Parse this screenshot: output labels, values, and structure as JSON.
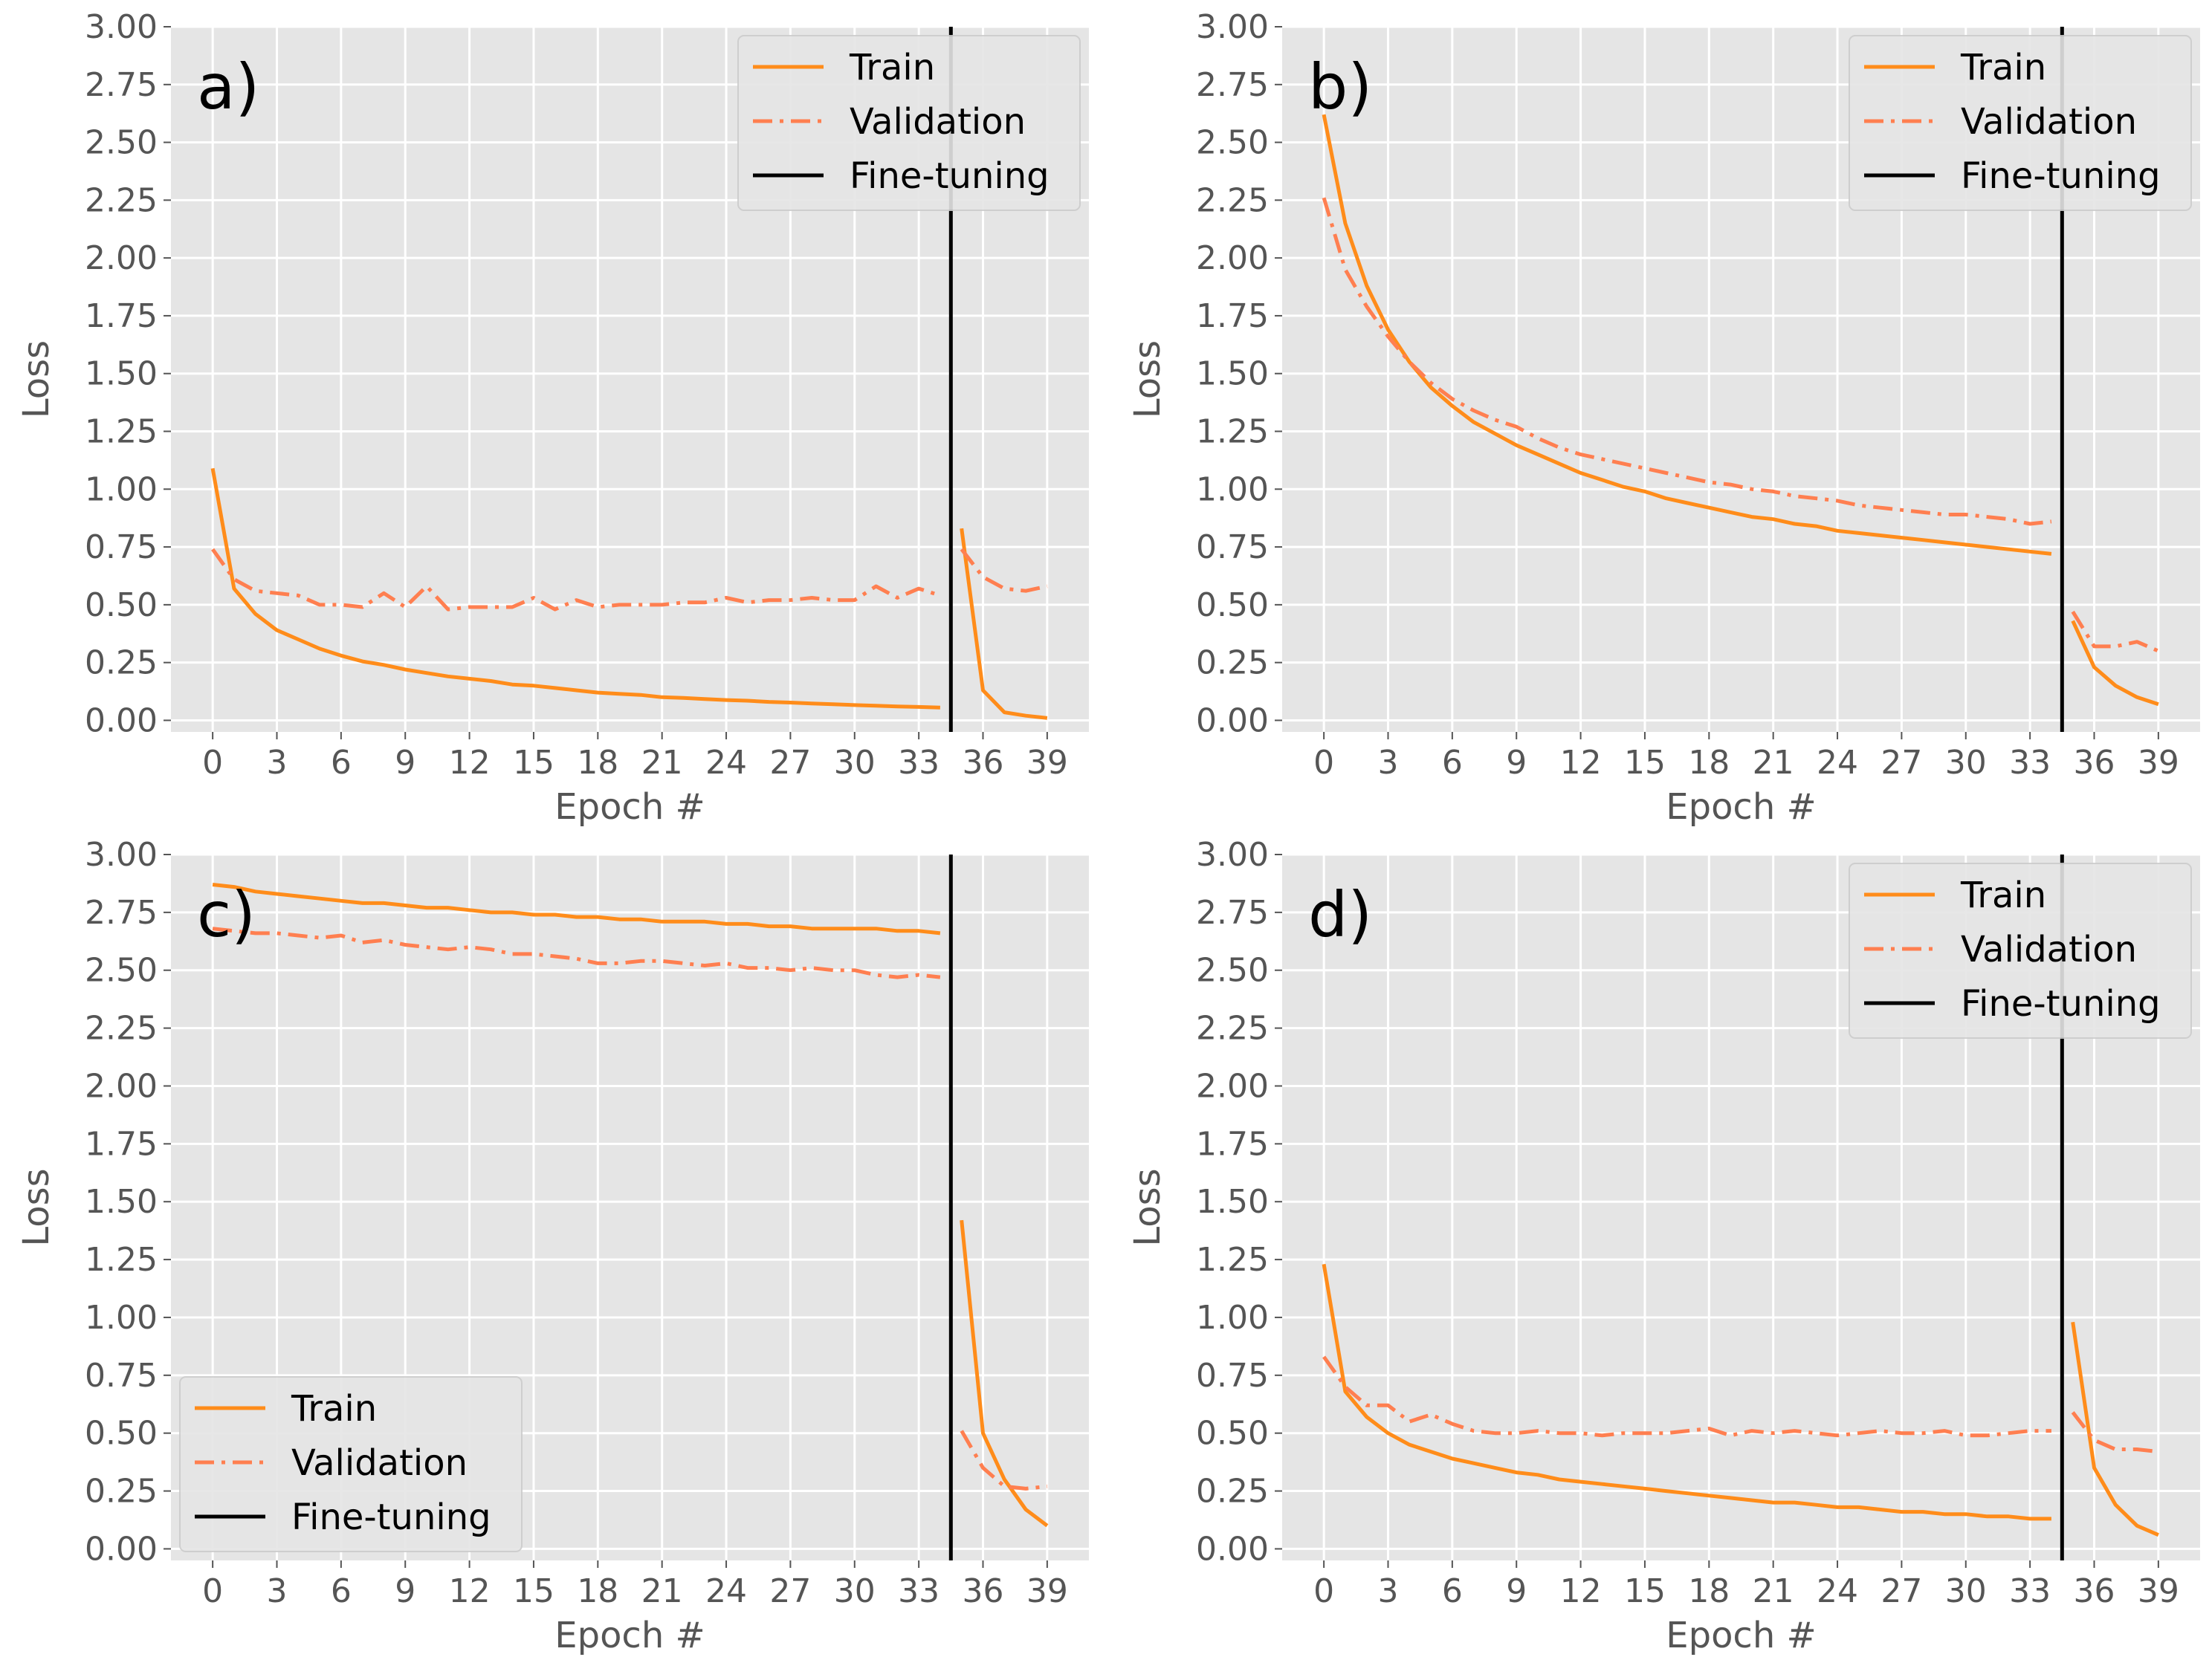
{
  "figure": {
    "style": {
      "panel_background": "#E5E5E5",
      "grid_color": "#FFFFFF",
      "train_color": "#FF8C1A",
      "validation_color": "#FF7F50",
      "finetune_color": "#000000"
    }
  },
  "chart_data": [
    {
      "type": "line",
      "panel_label": "a)",
      "xlabel": "Epoch #",
      "ylabel": "Loss",
      "xlim": [
        -1.95,
        40.95
      ],
      "ylim": [
        -0.05,
        3.0
      ],
      "xticks": [
        0,
        3,
        6,
        9,
        12,
        15,
        18,
        21,
        24,
        27,
        30,
        33,
        36,
        39
      ],
      "yticks": [
        "0.00",
        "0.25",
        "0.50",
        "0.75",
        "1.00",
        "1.25",
        "1.50",
        "1.75",
        "2.00",
        "2.25",
        "2.50",
        "2.75",
        "3.00"
      ],
      "grid": true,
      "legend": {
        "position": "top-right",
        "entries": [
          "Train",
          "Validation",
          "Fine-tuning"
        ]
      },
      "finetune_x": 34.5,
      "series": [
        {
          "name": "Train",
          "style": "solid",
          "segments": [
            {
              "x": [
                0,
                1,
                2,
                3,
                4,
                5,
                6,
                7,
                8,
                9,
                10,
                11,
                12,
                13,
                14,
                15,
                16,
                17,
                18,
                19,
                20,
                21,
                22,
                23,
                24,
                25,
                26,
                27,
                28,
                29,
                30,
                31,
                32,
                33,
                34
              ],
              "y": [
                1.09,
                0.57,
                0.46,
                0.39,
                0.35,
                0.31,
                0.28,
                0.255,
                0.24,
                0.22,
                0.205,
                0.19,
                0.18,
                0.17,
                0.155,
                0.15,
                0.14,
                0.13,
                0.12,
                0.115,
                0.11,
                0.1,
                0.097,
                0.092,
                0.088,
                0.085,
                0.08,
                0.077,
                0.073,
                0.07,
                0.066,
                0.063,
                0.06,
                0.058,
                0.055
              ]
            },
            {
              "x": [
                35,
                36,
                37,
                38,
                39
              ],
              "y": [
                0.83,
                0.13,
                0.035,
                0.02,
                0.01
              ]
            }
          ]
        },
        {
          "name": "Validation",
          "style": "dashdot",
          "segments": [
            {
              "x": [
                0,
                1,
                2,
                3,
                4,
                5,
                6,
                7,
                8,
                9,
                10,
                11,
                12,
                13,
                14,
                15,
                16,
                17,
                18,
                19,
                20,
                21,
                22,
                23,
                24,
                25,
                26,
                27,
                28,
                29,
                30,
                31,
                32,
                33,
                34
              ],
              "y": [
                0.74,
                0.61,
                0.56,
                0.55,
                0.54,
                0.5,
                0.5,
                0.49,
                0.55,
                0.49,
                0.58,
                0.48,
                0.49,
                0.49,
                0.49,
                0.53,
                0.48,
                0.52,
                0.49,
                0.5,
                0.5,
                0.5,
                0.51,
                0.51,
                0.53,
                0.51,
                0.52,
                0.52,
                0.53,
                0.52,
                0.52,
                0.58,
                0.53,
                0.57,
                0.54
              ]
            },
            {
              "x": [
                35,
                36,
                37,
                38,
                39
              ],
              "y": [
                0.74,
                0.62,
                0.57,
                0.56,
                0.58
              ]
            }
          ]
        }
      ]
    },
    {
      "type": "line",
      "panel_label": "b)",
      "xlabel": "Epoch #",
      "ylabel": "Loss",
      "xlim": [
        -1.95,
        40.95
      ],
      "ylim": [
        -0.05,
        3.0
      ],
      "xticks": [
        0,
        3,
        6,
        9,
        12,
        15,
        18,
        21,
        24,
        27,
        30,
        33,
        36,
        39
      ],
      "yticks": [
        "0.00",
        "0.25",
        "0.50",
        "0.75",
        "1.00",
        "1.25",
        "1.50",
        "1.75",
        "2.00",
        "2.25",
        "2.50",
        "2.75",
        "3.00"
      ],
      "grid": true,
      "legend": {
        "position": "top-right",
        "entries": [
          "Train",
          "Validation",
          "Fine-tuning"
        ]
      },
      "finetune_x": 34.5,
      "series": [
        {
          "name": "Train",
          "style": "solid",
          "segments": [
            {
              "x": [
                0,
                1,
                2,
                3,
                4,
                5,
                6,
                7,
                8,
                9,
                10,
                11,
                12,
                13,
                14,
                15,
                16,
                17,
                18,
                19,
                20,
                21,
                22,
                23,
                24,
                25,
                26,
                27,
                28,
                29,
                30,
                31,
                32,
                33,
                34
              ],
              "y": [
                2.62,
                2.15,
                1.88,
                1.69,
                1.55,
                1.44,
                1.36,
                1.29,
                1.24,
                1.19,
                1.15,
                1.11,
                1.07,
                1.04,
                1.01,
                0.99,
                0.96,
                0.94,
                0.92,
                0.9,
                0.88,
                0.87,
                0.85,
                0.84,
                0.82,
                0.81,
                0.8,
                0.79,
                0.78,
                0.77,
                0.76,
                0.75,
                0.74,
                0.73,
                0.72
              ]
            },
            {
              "x": [
                35,
                36,
                37,
                38,
                39
              ],
              "y": [
                0.43,
                0.23,
                0.15,
                0.1,
                0.07
              ]
            }
          ]
        },
        {
          "name": "Validation",
          "style": "dashdot",
          "segments": [
            {
              "x": [
                0,
                1,
                2,
                3,
                4,
                5,
                6,
                7,
                8,
                9,
                10,
                11,
                12,
                13,
                14,
                15,
                16,
                17,
                18,
                19,
                20,
                21,
                22,
                23,
                24,
                25,
                26,
                27,
                28,
                29,
                30,
                31,
                32,
                33,
                34
              ],
              "y": [
                2.26,
                1.95,
                1.79,
                1.66,
                1.55,
                1.46,
                1.39,
                1.34,
                1.3,
                1.27,
                1.22,
                1.18,
                1.15,
                1.13,
                1.11,
                1.09,
                1.07,
                1.05,
                1.03,
                1.02,
                1.0,
                0.99,
                0.97,
                0.96,
                0.95,
                0.93,
                0.92,
                0.91,
                0.9,
                0.89,
                0.89,
                0.88,
                0.87,
                0.85,
                0.86
              ]
            },
            {
              "x": [
                35,
                36,
                37,
                38,
                39
              ],
              "y": [
                0.47,
                0.32,
                0.32,
                0.34,
                0.3
              ]
            }
          ]
        }
      ]
    },
    {
      "type": "line",
      "panel_label": "c)",
      "xlabel": "Epoch #",
      "ylabel": "Loss",
      "xlim": [
        -1.95,
        40.95
      ],
      "ylim": [
        -0.05,
        3.0
      ],
      "xticks": [
        0,
        3,
        6,
        9,
        12,
        15,
        18,
        21,
        24,
        27,
        30,
        33,
        36,
        39
      ],
      "yticks": [
        "0.00",
        "0.25",
        "0.50",
        "0.75",
        "1.00",
        "1.25",
        "1.50",
        "1.75",
        "2.00",
        "2.25",
        "2.50",
        "2.75",
        "3.00"
      ],
      "grid": true,
      "legend": {
        "position": "bottom-left",
        "entries": [
          "Train",
          "Validation",
          "Fine-tuning"
        ]
      },
      "finetune_x": 34.5,
      "series": [
        {
          "name": "Train",
          "style": "solid",
          "segments": [
            {
              "x": [
                0,
                1,
                2,
                3,
                4,
                5,
                6,
                7,
                8,
                9,
                10,
                11,
                12,
                13,
                14,
                15,
                16,
                17,
                18,
                19,
                20,
                21,
                22,
                23,
                24,
                25,
                26,
                27,
                28,
                29,
                30,
                31,
                32,
                33,
                34
              ],
              "y": [
                2.87,
                2.86,
                2.84,
                2.83,
                2.82,
                2.81,
                2.8,
                2.79,
                2.79,
                2.78,
                2.77,
                2.77,
                2.76,
                2.75,
                2.75,
                2.74,
                2.74,
                2.73,
                2.73,
                2.72,
                2.72,
                2.71,
                2.71,
                2.71,
                2.7,
                2.7,
                2.69,
                2.69,
                2.68,
                2.68,
                2.68,
                2.68,
                2.67,
                2.67,
                2.66
              ]
            },
            {
              "x": [
                35,
                36,
                37,
                38,
                39
              ],
              "y": [
                1.42,
                0.5,
                0.3,
                0.17,
                0.1
              ]
            }
          ]
        },
        {
          "name": "Validation",
          "style": "dashdot",
          "segments": [
            {
              "x": [
                0,
                1,
                2,
                3,
                4,
                5,
                6,
                7,
                8,
                9,
                10,
                11,
                12,
                13,
                14,
                15,
                16,
                17,
                18,
                19,
                20,
                21,
                22,
                23,
                24,
                25,
                26,
                27,
                28,
                29,
                30,
                31,
                32,
                33,
                34
              ],
              "y": [
                2.68,
                2.67,
                2.66,
                2.66,
                2.65,
                2.64,
                2.65,
                2.62,
                2.63,
                2.61,
                2.6,
                2.59,
                2.6,
                2.59,
                2.57,
                2.57,
                2.56,
                2.55,
                2.53,
                2.53,
                2.54,
                2.54,
                2.53,
                2.52,
                2.53,
                2.51,
                2.51,
                2.5,
                2.51,
                2.5,
                2.5,
                2.48,
                2.47,
                2.48,
                2.47
              ]
            },
            {
              "x": [
                35,
                36,
                37,
                38,
                39
              ],
              "y": [
                0.51,
                0.35,
                0.27,
                0.26,
                0.27
              ]
            }
          ]
        }
      ]
    },
    {
      "type": "line",
      "panel_label": "d)",
      "xlabel": "Epoch #",
      "ylabel": "Loss",
      "xlim": [
        -1.95,
        40.95
      ],
      "ylim": [
        -0.05,
        3.0
      ],
      "xticks": [
        0,
        3,
        6,
        9,
        12,
        15,
        18,
        21,
        24,
        27,
        30,
        33,
        36,
        39
      ],
      "yticks": [
        "0.00",
        "0.25",
        "0.50",
        "0.75",
        "1.00",
        "1.25",
        "1.50",
        "1.75",
        "2.00",
        "2.25",
        "2.50",
        "2.75",
        "3.00"
      ],
      "grid": true,
      "legend": {
        "position": "top-right",
        "entries": [
          "Train",
          "Validation",
          "Fine-tuning"
        ]
      },
      "finetune_x": 34.5,
      "series": [
        {
          "name": "Train",
          "style": "solid",
          "segments": [
            {
              "x": [
                0,
                1,
                2,
                3,
                4,
                5,
                6,
                7,
                8,
                9,
                10,
                11,
                12,
                13,
                14,
                15,
                16,
                17,
                18,
                19,
                20,
                21,
                22,
                23,
                24,
                25,
                26,
                27,
                28,
                29,
                30,
                31,
                32,
                33,
                34
              ],
              "y": [
                1.23,
                0.68,
                0.57,
                0.5,
                0.45,
                0.42,
                0.39,
                0.37,
                0.35,
                0.33,
                0.32,
                0.3,
                0.29,
                0.28,
                0.27,
                0.26,
                0.25,
                0.24,
                0.23,
                0.22,
                0.21,
                0.2,
                0.2,
                0.19,
                0.18,
                0.18,
                0.17,
                0.16,
                0.16,
                0.15,
                0.15,
                0.14,
                0.14,
                0.13,
                0.13
              ]
            },
            {
              "x": [
                35,
                36,
                37,
                38,
                39
              ],
              "y": [
                0.98,
                0.35,
                0.19,
                0.1,
                0.06
              ]
            }
          ]
        },
        {
          "name": "Validation",
          "style": "dashdot",
          "segments": [
            {
              "x": [
                0,
                1,
                2,
                3,
                4,
                5,
                6,
                7,
                8,
                9,
                10,
                11,
                12,
                13,
                14,
                15,
                16,
                17,
                18,
                19,
                20,
                21,
                22,
                23,
                24,
                25,
                26,
                27,
                28,
                29,
                30,
                31,
                32,
                33,
                34
              ],
              "y": [
                0.83,
                0.7,
                0.62,
                0.62,
                0.55,
                0.58,
                0.54,
                0.51,
                0.5,
                0.5,
                0.51,
                0.5,
                0.5,
                0.49,
                0.5,
                0.5,
                0.5,
                0.51,
                0.52,
                0.49,
                0.51,
                0.5,
                0.51,
                0.5,
                0.49,
                0.5,
                0.51,
                0.5,
                0.5,
                0.51,
                0.49,
                0.49,
                0.5,
                0.51,
                0.51
              ]
            },
            {
              "x": [
                35,
                36,
                37,
                38,
                39
              ],
              "y": [
                0.59,
                0.47,
                0.43,
                0.43,
                0.42
              ]
            }
          ]
        }
      ]
    }
  ]
}
